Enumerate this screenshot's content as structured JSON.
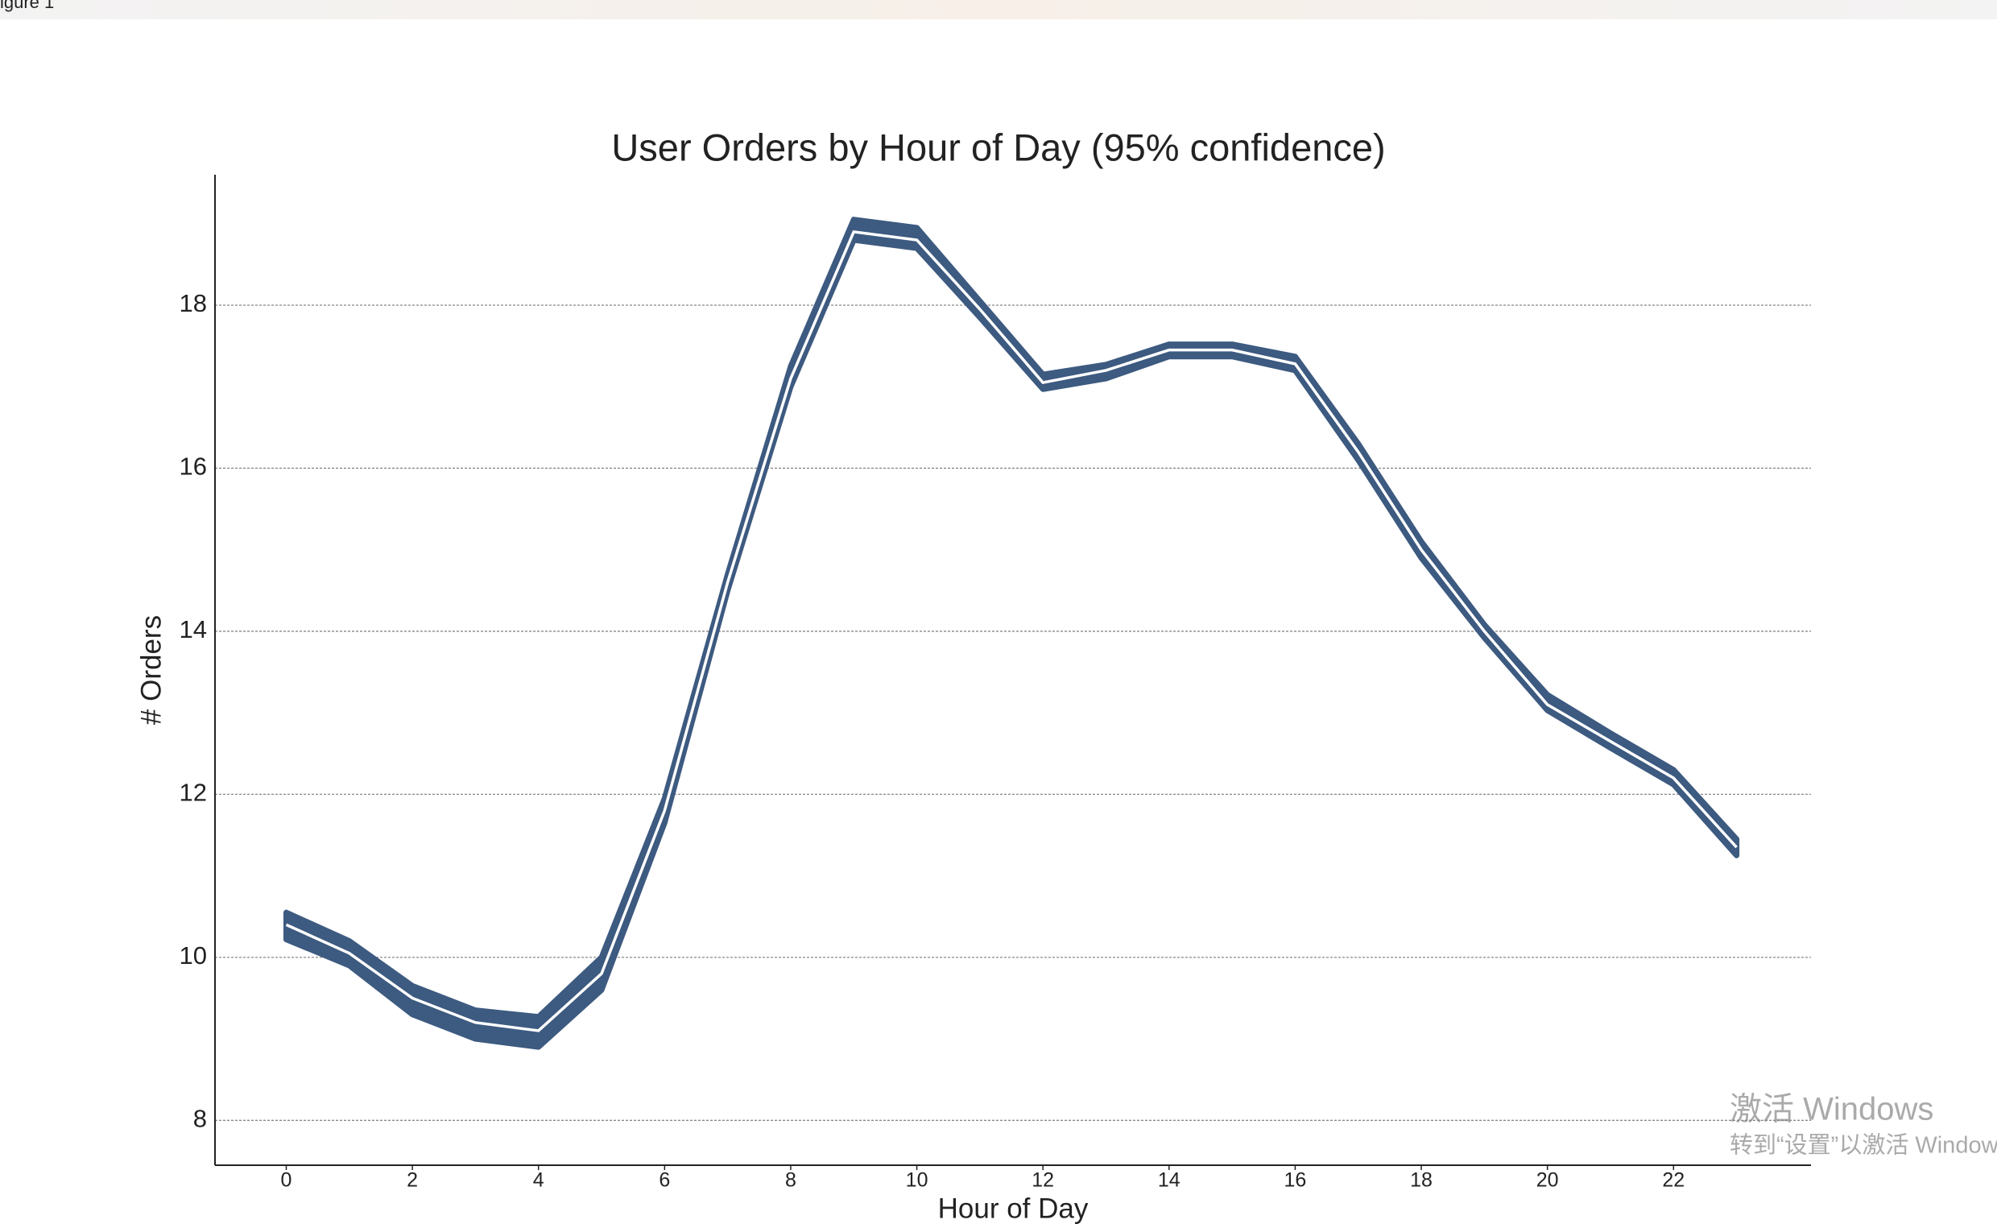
{
  "window_title": "igure 1",
  "watermark": [
    "激活 Windows",
    "转到“设置”以激活 Windows"
  ],
  "chart_data": {
    "type": "line",
    "title": "User Orders by Hour of Day (95% confidence)",
    "x_label": "Hour of Day",
    "y_label": "# Orders",
    "x": [
      0,
      1,
      2,
      3,
      4,
      5,
      6,
      7,
      8,
      9,
      10,
      11,
      12,
      13,
      14,
      15,
      16,
      17,
      18,
      19,
      20,
      21,
      22,
      23
    ],
    "values": [
      10.4,
      10.05,
      9.5,
      9.2,
      9.1,
      9.8,
      11.8,
      14.6,
      17.1,
      18.9,
      18.8,
      17.95,
      17.05,
      17.2,
      17.45,
      17.45,
      17.28,
      16.2,
      15.0,
      14.0,
      13.1,
      12.65,
      12.2,
      11.35
    ],
    "lower": [
      10.22,
      9.9,
      9.3,
      9.0,
      8.9,
      9.6,
      11.65,
      14.5,
      17.0,
      18.8,
      18.7,
      17.85,
      16.97,
      17.1,
      17.37,
      17.37,
      17.2,
      16.1,
      14.9,
      13.92,
      13.03,
      12.57,
      12.12,
      11.25
    ],
    "upper": [
      10.55,
      10.2,
      9.65,
      9.35,
      9.27,
      10.0,
      11.95,
      14.7,
      17.25,
      19.05,
      18.95,
      18.05,
      17.15,
      17.27,
      17.52,
      17.52,
      17.37,
      16.3,
      15.1,
      14.08,
      13.22,
      12.75,
      12.3,
      11.45
    ],
    "color": "#3d5a80",
    "line_color": "#ffffff",
    "xlim": [
      -1.13,
      24.18
    ],
    "ylim": [
      7.45,
      19.6
    ],
    "xticks": [
      0,
      2,
      4,
      6,
      8,
      10,
      12,
      14,
      16,
      18,
      20,
      22
    ],
    "yticks": [
      8,
      10,
      12,
      14,
      16,
      18
    ],
    "grid": true
  }
}
